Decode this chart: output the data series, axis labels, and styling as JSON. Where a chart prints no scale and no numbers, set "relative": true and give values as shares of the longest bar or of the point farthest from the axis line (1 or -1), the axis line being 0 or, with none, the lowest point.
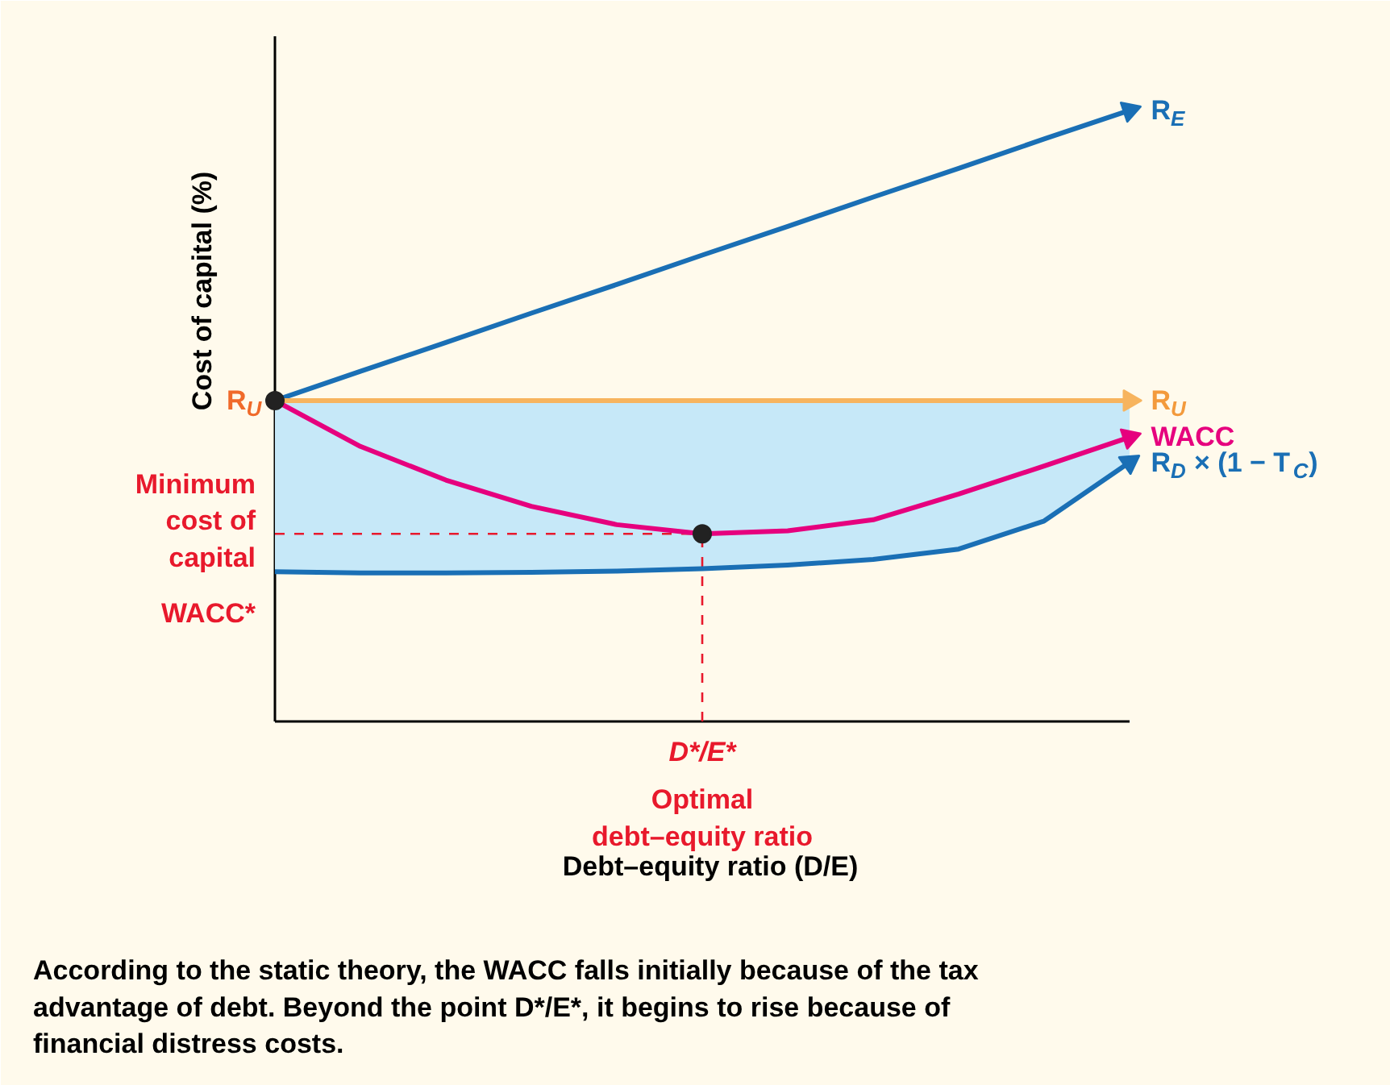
{
  "chart_data": {
    "type": "line",
    "relative": true,
    "xlabel": "Debt–equity ratio (D/E)",
    "ylabel": "Cost of capital (%)",
    "categories": [
      null,
      null,
      null,
      null,
      null,
      null,
      null,
      null,
      null,
      null,
      null
    ],
    "series": [
      {
        "name": "R$_{E}$",
        "color": "#1a6fb5",
        "values": [
          0.525,
          0.573,
          0.62,
          0.668,
          0.715,
          0.763,
          0.81,
          0.858,
          0.905,
          0.953,
          1
        ]
      },
      {
        "name": "R$_{U}$",
        "color": "#f7b45e",
        "values": [
          0.525,
          0.525,
          0.525,
          0.525,
          0.525,
          0.525,
          0.525,
          0.525,
          0.525,
          0.525,
          0.525
        ],
        "lower": [
          0.245,
          0.243,
          0.243,
          0.244,
          0.246,
          0.25,
          0.256,
          0.265,
          0.282,
          0.328,
          0.424
        ],
        "upper": [
          0.525,
          0.525,
          0.525,
          0.525,
          0.525,
          0.525,
          0.525,
          0.525,
          0.525,
          0.525,
          0.525
        ]
      },
      {
        "name": "WACC",
        "color": "#e6007e",
        "values": [
          0.525,
          0.45,
          0.395,
          0.352,
          0.322,
          0.307,
          0.312,
          0.33,
          0.372,
          0.418,
          0.465
        ]
      },
      {
        "name": "R$_{D}$ × (1 − T$_{C}$)",
        "color": "#1a6fb5",
        "values": [
          0.245,
          0.243,
          0.243,
          0.244,
          0.246,
          0.25,
          0.256,
          0.265,
          0.282,
          0.328,
          0.424
        ]
      }
    ],
    "ref_lines": [
      {
        "axis": "y",
        "value": 0.307,
        "label": "Minimum cost of capital",
        "color": "#e8192c",
        "line_style": "dashed"
      }
    ],
    "annotations": [
      "R$_{U}$",
      "WACC*",
      "D*/E*",
      "Optimal debt–equity ratio",
      "According to the static theory, the WACC falls initially because of the tax advantage of debt. Beyond the point D*/E*, it begins to rise because of financial distress costs."
    ],
    "legend": false
  }
}
